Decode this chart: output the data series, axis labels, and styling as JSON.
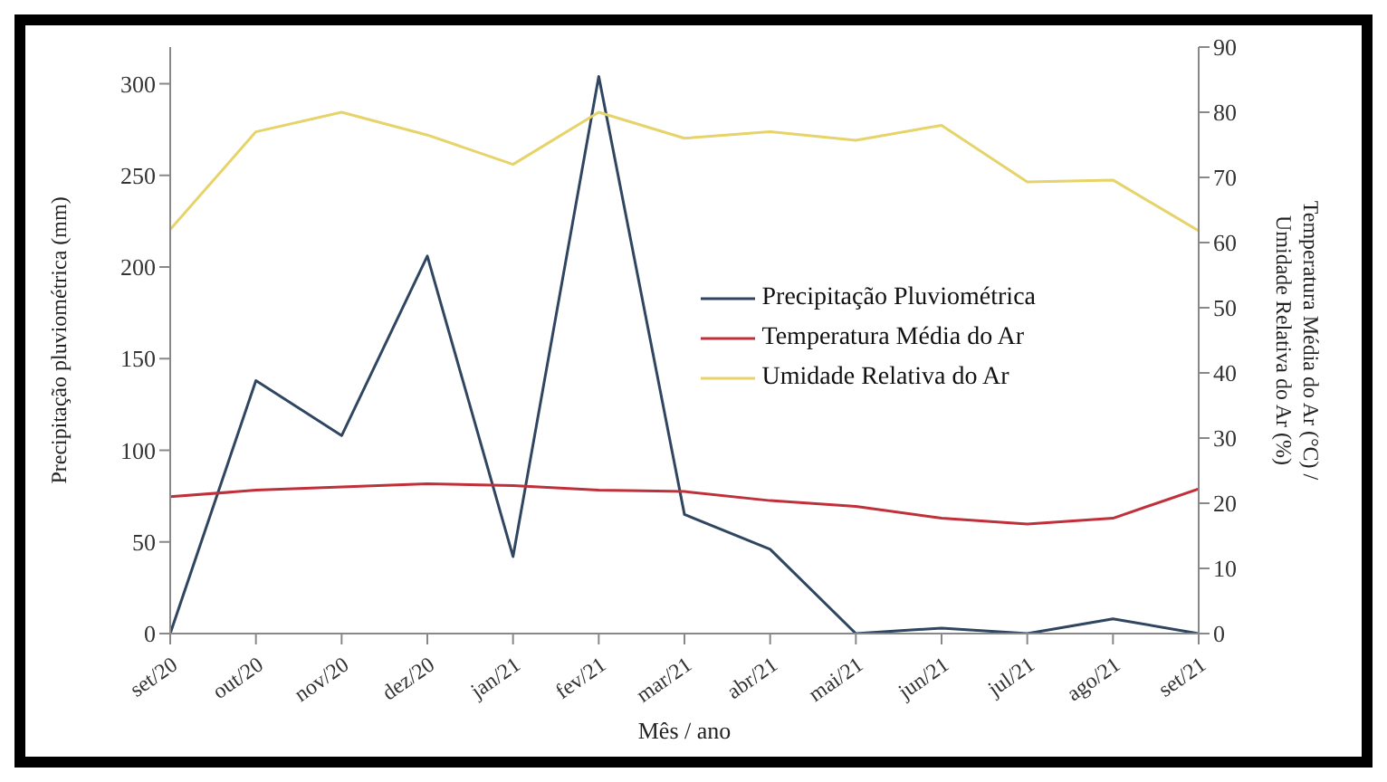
{
  "chart_data": {
    "type": "line",
    "xlabel": "Mês / ano",
    "ylabel": "Precipitação pluviométrica (mm)",
    "y2label": "Temperatura Média do Ar (°C) / Umidade Relativa do Ar (%)",
    "categories": [
      "set/20",
      "out/20",
      "nov/20",
      "dez/20",
      "jan/21",
      "fev/21",
      "mar/21",
      "abr/21",
      "mai/21",
      "jun/21",
      "jul/21",
      "ago/21",
      "set/21"
    ],
    "ylim": [
      0,
      320
    ],
    "yticks": [
      0,
      50,
      100,
      150,
      200,
      250,
      300
    ],
    "y2lim": [
      0,
      90
    ],
    "y2ticks": [
      0,
      10,
      20,
      30,
      40,
      50,
      60,
      70,
      80,
      90
    ],
    "series": [
      {
        "name": "Precipitação Pluviométrica",
        "color": "#2f4560",
        "values": [
          0,
          138,
          108,
          206,
          42,
          304,
          65,
          46,
          0,
          3,
          0,
          8,
          0
        ]
      },
      {
        "name": "Temperatura Média do Ar",
        "color": "#c0303a",
        "axis": "y2",
        "values": [
          21,
          22,
          22.5,
          23,
          22.7,
          22,
          21.8,
          20.4,
          19.5,
          17.7,
          16.8,
          17.7,
          22.2
        ]
      },
      {
        "name": "Umidade Relativa do Ar",
        "color": "#e6d36a",
        "axis": "y2",
        "values": [
          62,
          77,
          80,
          76.5,
          72,
          80,
          76,
          77,
          75.7,
          78,
          69.3,
          69.6,
          61.8
        ]
      }
    ],
    "legend": "right",
    "grid": false,
    "marker": "none"
  }
}
